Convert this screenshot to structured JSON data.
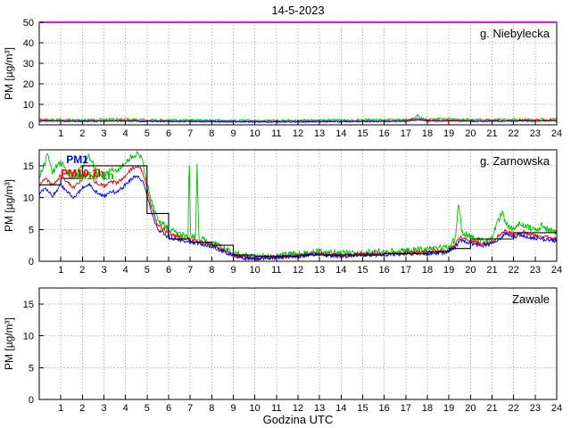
{
  "title": "14-5-2023",
  "xlabel": "Godzina UTC",
  "xlim": [
    0,
    24
  ],
  "xticks": [
    1,
    2,
    3,
    4,
    5,
    6,
    7,
    8,
    9,
    10,
    11,
    12,
    13,
    14,
    15,
    16,
    17,
    18,
    19,
    20,
    21,
    22,
    23,
    24
  ],
  "colors": {
    "pm1": "#0000ee",
    "pm25": "#ee0000",
    "pm10": "#00bb00",
    "hourly": "#000000",
    "threshold": "#ff00ff",
    "grid": "#999999",
    "frame": "#000000"
  },
  "chart_data": [
    {
      "type": "line",
      "station": "g. Niebylecka",
      "ylabel": "PM [µg/m³]",
      "ylim": [
        0,
        50
      ],
      "yticks": [
        0,
        10,
        20,
        30,
        40,
        50
      ],
      "threshold": 50,
      "annotations": [],
      "series": [
        {
          "name": "PM10",
          "color_key": "pm10",
          "jitter": 0.55,
          "keypoints": [
            [
              0,
              2.6
            ],
            [
              1,
              2.5
            ],
            [
              2,
              2.4
            ],
            [
              3,
              2.6
            ],
            [
              4,
              2.7
            ],
            [
              5,
              2.4
            ],
            [
              6,
              2.3
            ],
            [
              7,
              2.4
            ],
            [
              8,
              2.2
            ],
            [
              9,
              2.1
            ],
            [
              10,
              2.0
            ],
            [
              11,
              2.1
            ],
            [
              12,
              2.1
            ],
            [
              13,
              2.3
            ],
            [
              14,
              2.3
            ],
            [
              15,
              2.4
            ],
            [
              16,
              2.4
            ],
            [
              17,
              2.5
            ],
            [
              17.4,
              3.0
            ],
            [
              17.55,
              4.8
            ],
            [
              17.7,
              3.2
            ],
            [
              18,
              2.7
            ],
            [
              18.5,
              2.9
            ],
            [
              19,
              2.8
            ],
            [
              20,
              2.5
            ],
            [
              21,
              2.5
            ],
            [
              22,
              2.6
            ],
            [
              23,
              2.6
            ],
            [
              24,
              2.7
            ]
          ]
        },
        {
          "name": "PM2.5",
          "color_key": "pm25",
          "jitter": 0.3,
          "keypoints": [
            [
              0,
              2.1
            ],
            [
              2,
              2.0
            ],
            [
              4,
              2.1
            ],
            [
              6,
              1.9
            ],
            [
              8,
              1.8
            ],
            [
              10,
              1.7
            ],
            [
              12,
              1.7
            ],
            [
              14,
              1.8
            ],
            [
              16,
              1.9
            ],
            [
              17,
              2.0
            ],
            [
              17.55,
              3.0
            ],
            [
              18,
              2.2
            ],
            [
              19,
              2.2
            ],
            [
              20,
              2.0
            ],
            [
              22,
              2.1
            ],
            [
              24,
              2.2
            ]
          ]
        },
        {
          "name": "PM1",
          "color_key": "pm1",
          "jitter": 0.25,
          "keypoints": [
            [
              0,
              1.8
            ],
            [
              2,
              1.7
            ],
            [
              4,
              1.8
            ],
            [
              6,
              1.6
            ],
            [
              8,
              1.5
            ],
            [
              10,
              1.4
            ],
            [
              12,
              1.4
            ],
            [
              14,
              1.5
            ],
            [
              16,
              1.6
            ],
            [
              17,
              1.7
            ],
            [
              17.55,
              2.4
            ],
            [
              18,
              1.8
            ],
            [
              19,
              1.9
            ],
            [
              20,
              1.7
            ],
            [
              22,
              1.8
            ],
            [
              24,
              1.9
            ]
          ]
        }
      ]
    },
    {
      "type": "line",
      "station": "g. Zarnowska",
      "ylabel": "PM [µg/m³]",
      "ylim": [
        0,
        17.5
      ],
      "yticks": [
        0,
        5,
        10,
        15
      ],
      "annotations": [
        {
          "text": "PM1",
          "color_key": "pm1",
          "x": 1.25,
          "y": 15.4
        },
        {
          "text": "PM10 1h",
          "color_key": "pm10",
          "x": 1.45,
          "y": 12.9
        },
        {
          "text": "PM10 1h",
          "color_key": "pm25",
          "x": 1.0,
          "y": 13.2
        }
      ],
      "series": [
        {
          "name": "PM10",
          "color_key": "pm10",
          "jitter": 0.5,
          "keypoints": [
            [
              0,
              13
            ],
            [
              0.2,
              15
            ],
            [
              0.4,
              16.8
            ],
            [
              0.6,
              14
            ],
            [
              1,
              15.5
            ],
            [
              1.3,
              14
            ],
            [
              1.6,
              13
            ],
            [
              2,
              15
            ],
            [
              2.3,
              16.5
            ],
            [
              2.6,
              14.5
            ],
            [
              3,
              13
            ],
            [
              3.3,
              14.5
            ],
            [
              3.6,
              14
            ],
            [
              4,
              15.5
            ],
            [
              4.3,
              16.5
            ],
            [
              4.6,
              17.1
            ],
            [
              4.8,
              15.5
            ],
            [
              5,
              12.5
            ],
            [
              5.2,
              9.5
            ],
            [
              5.5,
              6.5
            ],
            [
              6,
              5
            ],
            [
              6.5,
              4.2
            ],
            [
              6.9,
              3.9
            ],
            [
              6.95,
              16.8
            ],
            [
              7.02,
              4
            ],
            [
              7.25,
              3.8
            ],
            [
              7.32,
              15.8
            ],
            [
              7.4,
              3.6
            ],
            [
              7.8,
              3.2
            ],
            [
              8,
              3
            ],
            [
              8.5,
              2.1
            ],
            [
              9,
              1.3
            ],
            [
              9.5,
              0.8
            ],
            [
              10,
              0.6
            ],
            [
              11,
              0.9
            ],
            [
              12,
              1.2
            ],
            [
              13,
              1.5
            ],
            [
              14,
              1.2
            ],
            [
              15,
              1.4
            ],
            [
              16,
              1.5
            ],
            [
              17,
              1.7
            ],
            [
              18,
              1.9
            ],
            [
              19,
              2.3
            ],
            [
              19.3,
              3.5
            ],
            [
              19.45,
              9.5
            ],
            [
              19.6,
              4.5
            ],
            [
              20,
              4
            ],
            [
              20.5,
              3.2
            ],
            [
              21,
              3.8
            ],
            [
              21.45,
              7.8
            ],
            [
              21.7,
              5.5
            ],
            [
              22,
              5
            ],
            [
              22.3,
              6
            ],
            [
              22.6,
              5.4
            ],
            [
              23,
              4.8
            ],
            [
              23.3,
              5.6
            ],
            [
              23.6,
              5
            ],
            [
              24,
              4.5
            ]
          ]
        },
        {
          "name": "PM2.5",
          "color_key": "pm25",
          "jitter": 0.3,
          "keypoints": [
            [
              0,
              12
            ],
            [
              0.3,
              13
            ],
            [
              0.6,
              11.8
            ],
            [
              1,
              13.5
            ],
            [
              1.3,
              12.5
            ],
            [
              1.6,
              11.5
            ],
            [
              2,
              13
            ],
            [
              2.3,
              13.8
            ],
            [
              2.6,
              12.5
            ],
            [
              3,
              11.8
            ],
            [
              3.3,
              12.5
            ],
            [
              3.6,
              12.3
            ],
            [
              4,
              13.5
            ],
            [
              4.3,
              14.5
            ],
            [
              4.6,
              15
            ],
            [
              4.8,
              14
            ],
            [
              5,
              11.5
            ],
            [
              5.2,
              8.5
            ],
            [
              5.5,
              5.8
            ],
            [
              6,
              4.3
            ],
            [
              6.5,
              3.7
            ],
            [
              7,
              3.4
            ],
            [
              7.5,
              3
            ],
            [
              8,
              2.6
            ],
            [
              8.5,
              1.8
            ],
            [
              9,
              1
            ],
            [
              9.5,
              0.6
            ],
            [
              10,
              0.5
            ],
            [
              11,
              0.7
            ],
            [
              12,
              0.9
            ],
            [
              13,
              1.2
            ],
            [
              14,
              0.9
            ],
            [
              15,
              1.1
            ],
            [
              16,
              1.1
            ],
            [
              17,
              1.3
            ],
            [
              18,
              1.4
            ],
            [
              19,
              1.7
            ],
            [
              19.3,
              2.6
            ],
            [
              19.5,
              3.8
            ],
            [
              20,
              3.2
            ],
            [
              20.5,
              2.7
            ],
            [
              21,
              3.1
            ],
            [
              21.6,
              4.8
            ],
            [
              22,
              4.2
            ],
            [
              22.5,
              4.6
            ],
            [
              23,
              4
            ],
            [
              23.5,
              3.8
            ],
            [
              24,
              3.5
            ]
          ]
        },
        {
          "name": "PM1",
          "color_key": "pm1",
          "jitter": 0.3,
          "keypoints": [
            [
              0,
              10.5
            ],
            [
              0.3,
              11.5
            ],
            [
              0.6,
              10.2
            ],
            [
              1,
              12
            ],
            [
              1.3,
              11
            ],
            [
              1.6,
              10
            ],
            [
              2,
              11.5
            ],
            [
              2.3,
              12.2
            ],
            [
              2.6,
              11
            ],
            [
              3,
              10.2
            ],
            [
              3.3,
              11
            ],
            [
              3.6,
              10.8
            ],
            [
              4,
              12
            ],
            [
              4.3,
              13
            ],
            [
              4.6,
              13.5
            ],
            [
              4.8,
              12.5
            ],
            [
              5,
              10.5
            ],
            [
              5.2,
              7.5
            ],
            [
              5.5,
              5
            ],
            [
              6,
              3.8
            ],
            [
              6.5,
              3.3
            ],
            [
              7,
              3
            ],
            [
              7.5,
              2.7
            ],
            [
              8,
              2.3
            ],
            [
              8.5,
              1.6
            ],
            [
              9,
              0.9
            ],
            [
              9.5,
              0.5
            ],
            [
              10,
              0.4
            ],
            [
              10.5,
              0.5
            ],
            [
              11,
              0.6
            ],
            [
              11.5,
              0.7
            ],
            [
              12,
              0.8
            ],
            [
              12.5,
              1
            ],
            [
              13,
              1.1
            ],
            [
              13.5,
              0.9
            ],
            [
              14,
              0.8
            ],
            [
              14.5,
              0.9
            ],
            [
              15,
              1
            ],
            [
              15.5,
              0.9
            ],
            [
              16,
              1
            ],
            [
              16.5,
              1.1
            ],
            [
              17,
              1.2
            ],
            [
              17.5,
              1.1
            ],
            [
              18,
              1.2
            ],
            [
              18.5,
              1.3
            ],
            [
              19,
              1.5
            ],
            [
              19.3,
              2.2
            ],
            [
              19.5,
              3.3
            ],
            [
              19.8,
              3
            ],
            [
              20,
              2.8
            ],
            [
              20.5,
              2.4
            ],
            [
              21,
              2.8
            ],
            [
              21.3,
              3.2
            ],
            [
              21.6,
              4.3
            ],
            [
              22,
              3.8
            ],
            [
              22.3,
              4.2
            ],
            [
              22.6,
              3.9
            ],
            [
              23,
              3.6
            ],
            [
              23.5,
              3.4
            ],
            [
              24,
              3.2
            ]
          ]
        }
      ],
      "step_series": {
        "name": "PM10 1h",
        "color_key": "hourly",
        "values": [
          12,
          13,
          15,
          15,
          15,
          7.5,
          3.5,
          3,
          2.5,
          1,
          0.8,
          0.8,
          1,
          1,
          1,
          1,
          1.2,
          1.2,
          1.5,
          2,
          3.5,
          3.5,
          4.5,
          4.5
        ]
      }
    },
    {
      "type": "line",
      "station": "Zawale",
      "ylabel": "PM [µg/m³]",
      "ylim": [
        0,
        17.5
      ],
      "yticks": [
        0,
        5,
        10,
        15
      ],
      "annotations": [],
      "series": []
    }
  ]
}
